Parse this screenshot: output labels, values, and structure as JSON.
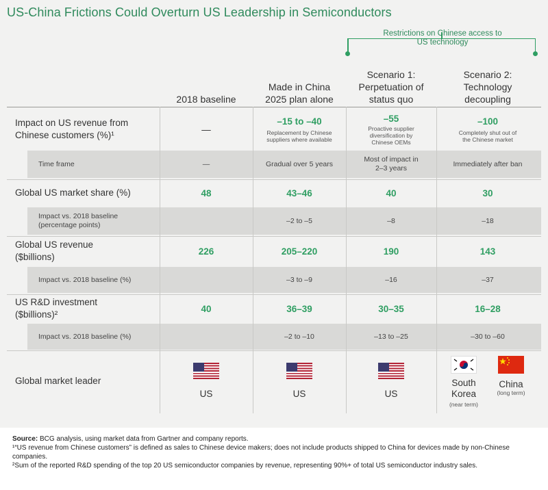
{
  "title": "US-China Frictions Could Overturn US Leadership in Semiconductors",
  "bracket_label": "Restrictions on Chinese access to US technology",
  "columns": [
    [
      "2018 baseline"
    ],
    [
      "Made in China",
      "2025 plan alone"
    ],
    [
      "Scenario 1:",
      "Perpetuation of",
      "status quo"
    ],
    [
      "Scenario 2:",
      "Technology",
      "decoupling"
    ]
  ],
  "rows": {
    "impact_revenue": {
      "label": [
        "Impact on US revenue from",
        "Chinese customers (%)¹"
      ],
      "baseline": "—",
      "mic": {
        "value": "–15 to –40",
        "note": [
          "Replacement by Chinese",
          "suppliers where available"
        ]
      },
      "s1": {
        "value": "–55",
        "note": [
          "Proactive supplier",
          "diversification by",
          "Chinese OEMs"
        ]
      },
      "s2": {
        "value": "–100",
        "note": [
          "Completely shut out of",
          "the Chinese market"
        ]
      }
    },
    "time_frame": {
      "label": "Time frame",
      "baseline": "—",
      "mic": "Gradual over 5 years",
      "s1": [
        "Most of impact in",
        "2–3 years"
      ],
      "s2": "Immediately after ban"
    },
    "market_share": {
      "label": "Global US market share (%)",
      "baseline": "48",
      "mic": "43–46",
      "s1": "40",
      "s2": "30"
    },
    "market_share_impact": {
      "label": [
        "Impact vs. 2018 baseline",
        "(percentage points)"
      ],
      "mic": "–2 to –5",
      "s1": "–8",
      "s2": "–18"
    },
    "revenue": {
      "label": [
        "Global US revenue",
        "($billions)"
      ],
      "baseline": "226",
      "mic": "205–220",
      "s1": "190",
      "s2": "143"
    },
    "revenue_impact": {
      "label": "Impact vs. 2018 baseline (%)",
      "mic": "–3 to –9",
      "s1": "–16",
      "s2": "–37"
    },
    "rnd": {
      "label": [
        "US R&D investment",
        "($billions)²"
      ],
      "baseline": "40",
      "mic": "36–39",
      "s1": "30–35",
      "s2": "16–28"
    },
    "rnd_impact": {
      "label": "Impact vs. 2018 baseline (%)",
      "mic": "–2 to –10",
      "s1": "–13 to –25",
      "s2": "–30 to –60"
    },
    "leader": {
      "label": "Global market leader",
      "baseline": "US",
      "mic": "US",
      "s1": "US",
      "s2_kr": {
        "name": [
          "South",
          "Korea"
        ],
        "note": "(near term)",
        "flag": "south-korea-flag"
      },
      "s2_cn": {
        "name": "China",
        "note": "(long term)",
        "flag": "china-flag"
      },
      "us_flag": "us-flag"
    }
  },
  "footer": {
    "source_label": "Source:",
    "source_text": " BCG analysis, using market data from Gartner and company reports.",
    "note1": "¹“US revenue from Chinese customers” is defined as sales to Chinese device makers; does not include products shipped to China for devices made by non-Chinese companies.",
    "note2": "²Sum of the reported R&D spending of the top 20 US semiconductor companies by revenue, representing 90%+ of total US semiconductor industry sales."
  },
  "colors": {
    "green": "#2f9e62",
    "title_green": "#2f8a5c",
    "subrow_gray": "#d9d9d7",
    "background": "#f2f2f1"
  }
}
